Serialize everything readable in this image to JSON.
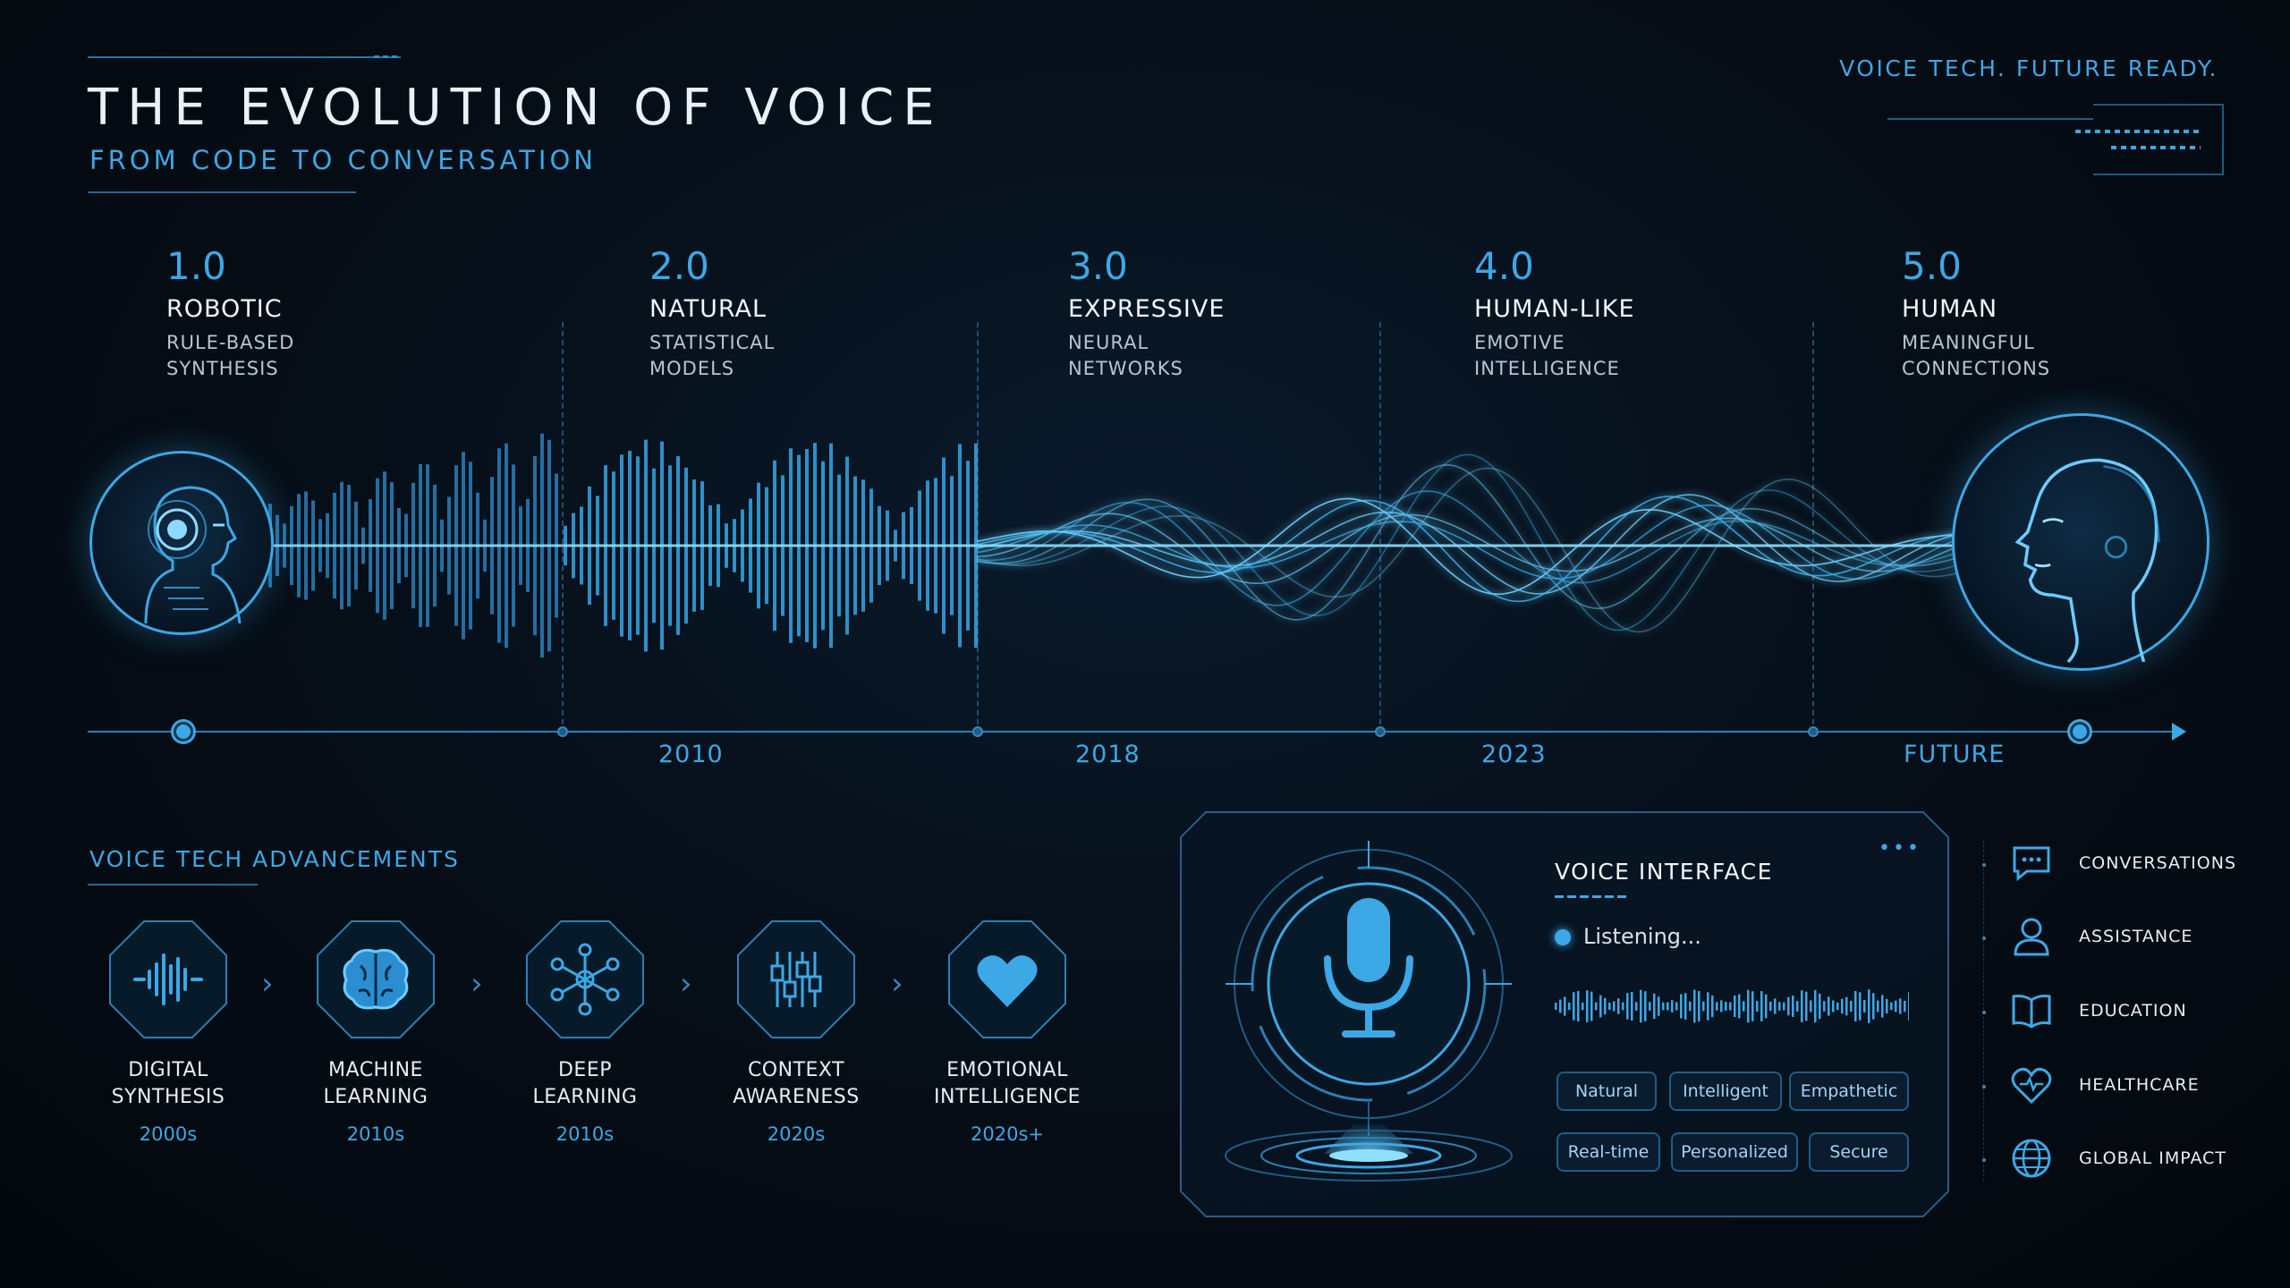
{
  "header": {
    "title": "THE EVOLUTION OF VOICE",
    "subtitle": "FROM CODE TO CONVERSATION",
    "tagline": "VOICE TECH.  FUTURE READY."
  },
  "eras": [
    {
      "version": "1.0",
      "name": "ROBOTIC",
      "desc_line1": "RULE-BASED",
      "desc_line2": "SYNTHESIS"
    },
    {
      "version": "2.0",
      "name": "NATURAL",
      "desc_line1": "STATISTICAL",
      "desc_line2": "MODELS"
    },
    {
      "version": "3.0",
      "name": "EXPRESSIVE",
      "desc_line1": "NEURAL",
      "desc_line2": "NETWORKS"
    },
    {
      "version": "4.0",
      "name": "HUMAN-LIKE",
      "desc_line1": "EMOTIVE",
      "desc_line2": "INTELLIGENCE"
    },
    {
      "version": "5.0",
      "name": "HUMAN",
      "desc_line1": "MEANINGFUL",
      "desc_line2": "CONNECTIONS"
    }
  ],
  "timeline": {
    "years": [
      "2010",
      "2018",
      "2023",
      "FUTURE"
    ]
  },
  "advancements": {
    "title": "VOICE TECH ADVANCEMENTS",
    "items": [
      {
        "line1": "DIGITAL",
        "line2": "SYNTHESIS",
        "year": "2000s",
        "icon": "waveform-icon"
      },
      {
        "line1": "MACHINE",
        "line2": "LEARNING",
        "year": "2010s",
        "icon": "brain-icon"
      },
      {
        "line1": "DEEP",
        "line2": "LEARNING",
        "year": "2010s",
        "icon": "network-icon"
      },
      {
        "line1": "CONTEXT",
        "line2": "AWARENESS",
        "year": "2020s",
        "icon": "sliders-icon"
      },
      {
        "line1": "EMOTIONAL",
        "line2": "INTELLIGENCE",
        "year": "2020s+",
        "icon": "heart-icon"
      }
    ]
  },
  "voice_interface": {
    "title": "VOICE INTERFACE",
    "status": "Listening...",
    "tags": [
      "Natural",
      "Intelligent",
      "Empathetic",
      "Real-time",
      "Personalized",
      "Secure"
    ]
  },
  "sidebar": {
    "items": [
      {
        "label": "CONVERSATIONS",
        "icon": "chat-icon"
      },
      {
        "label": "ASSISTANCE",
        "icon": "person-icon"
      },
      {
        "label": "EDUCATION",
        "icon": "book-icon"
      },
      {
        "label": "HEALTHCARE",
        "icon": "heart-pulse-icon"
      },
      {
        "label": "GLOBAL IMPACT",
        "icon": "globe-icon"
      }
    ]
  },
  "colors": {
    "accent": "#3ca8e6",
    "background": "#050c14",
    "text": "#e6eef6"
  }
}
